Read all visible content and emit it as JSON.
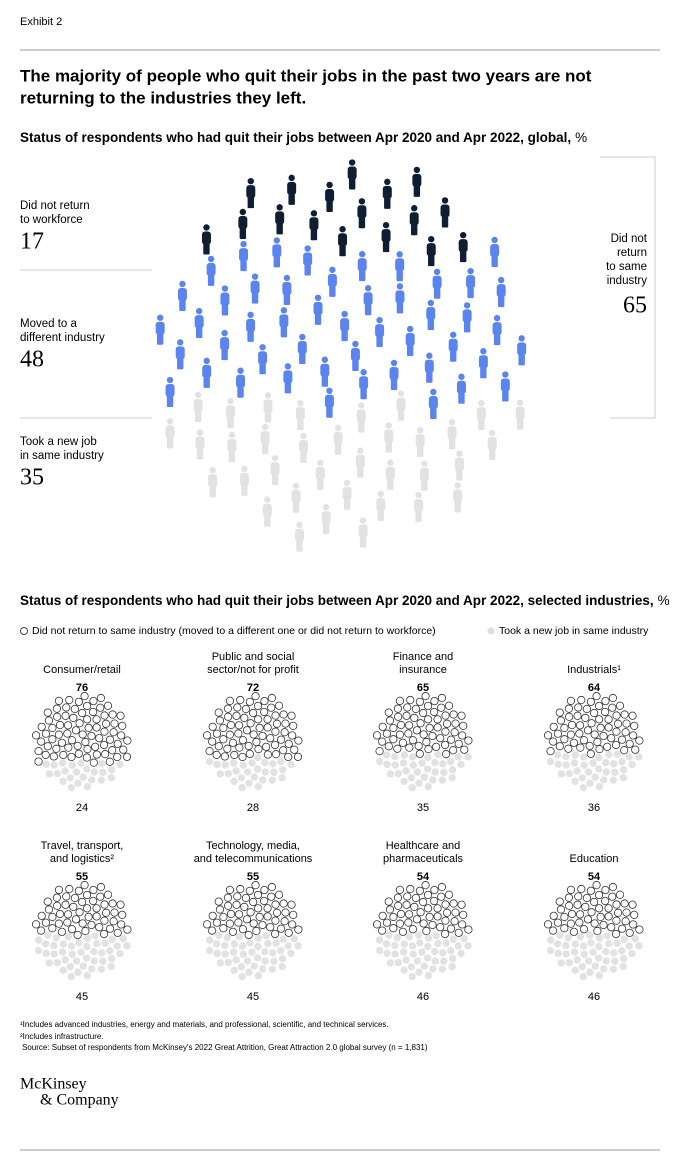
{
  "exhibit": "Exhibit 2",
  "title": [
    "The majority of people who quit their jobs in the past two years are not",
    "returning to the industries they left."
  ],
  "global": {
    "subtitle": "Status of respondents who had quit their jobs between Apr 2020 and Apr 2022, global,",
    "unit": "%",
    "groups": [
      {
        "label": [
          "Did not return",
          "to workforce"
        ],
        "value": 17,
        "color": "#0f1e33"
      },
      {
        "label": [
          "Moved to a",
          "different industry"
        ],
        "value": 48,
        "color": "#5b84ee"
      },
      {
        "label": [
          "Took a new job",
          "in same industry"
        ],
        "value": 35,
        "color": "#e2e2e2"
      }
    ],
    "bracket": {
      "label": [
        "Did not",
        "return",
        "to same",
        "industry"
      ],
      "value": 65
    }
  },
  "industries": {
    "subtitle": "Status of respondents who had quit their jobs between Apr 2020 and Apr 2022, selected industries,",
    "unit": "%",
    "legend": [
      "Did not return to same industry (moved to a different one or did not return to workforce)",
      "Took a new job in same industry"
    ],
    "items": [
      {
        "name": [
          "Consumer/retail"
        ],
        "left": 76,
        "same": 24
      },
      {
        "name": [
          "Public and social",
          "sector/not for profit"
        ],
        "left": 72,
        "same": 28
      },
      {
        "name": [
          "Finance and",
          "insurance"
        ],
        "left": 65,
        "same": 35
      },
      {
        "name": [
          "Industrials¹"
        ],
        "left": 64,
        "same": 36
      },
      {
        "name": [
          "Travel, transport,",
          "and logistics²"
        ],
        "left": 55,
        "same": 45
      },
      {
        "name": [
          "Technology, media,",
          "and telecommunications"
        ],
        "left": 55,
        "same": 45
      },
      {
        "name": [
          "Healthcare and",
          "pharmaceuticals"
        ],
        "left": 54,
        "same": 46
      },
      {
        "name": [
          "Education"
        ],
        "left": 54,
        "same": 46
      }
    ]
  },
  "footnotes": [
    "¹Includes advanced industries, energy and materials, and professional, scientific, and technical services.",
    "²Includes infrastructure.",
    "Source: Subset of respondents from McKinsey's 2022 Great Attrition, Great Attraction 2.0 global survey (n = 1,831)"
  ],
  "logo": [
    "McKinsey",
    "& Company"
  ]
}
